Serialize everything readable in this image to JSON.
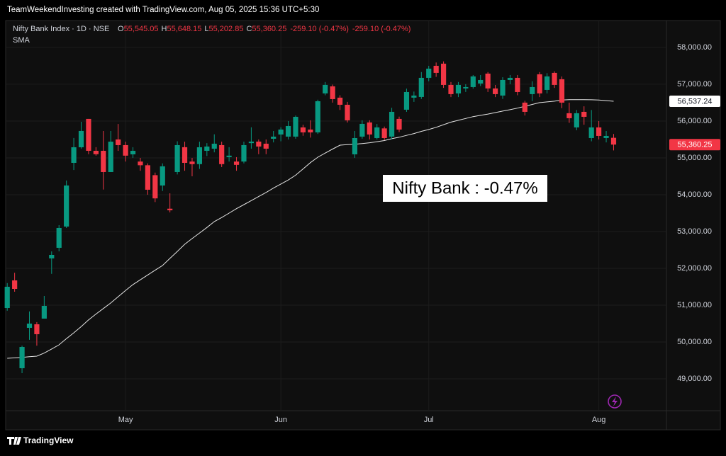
{
  "header": {
    "credit": "TeamWeekendInvesting created with TradingView.com, Aug 05, 2025 15:36 UTC+5:30"
  },
  "footer": {
    "brand": "TradingView"
  },
  "chart_data": {
    "type": "candlestick",
    "legend": {
      "symbol": "Nifty Bank Index · 1D · NSE",
      "ohlc": [
        {
          "key": "O",
          "value": "55,545.05"
        },
        {
          "key": "H",
          "value": "55,648.15"
        },
        {
          "key": "L",
          "value": "55,202.85"
        },
        {
          "key": "C",
          "value": "55,360.25"
        }
      ],
      "change": "-259.10 (-0.47%)",
      "change_pct": "-259.10 (-0.47%)"
    },
    "annotation": "Nifty Bank : -0.47%",
    "categories": [
      null,
      null,
      null,
      null,
      null,
      null,
      null,
      null,
      null,
      null,
      null,
      null,
      null,
      null,
      null,
      null,
      "May",
      null,
      null,
      null,
      null,
      null,
      null,
      null,
      null,
      null,
      null,
      null,
      null,
      null,
      null,
      null,
      null,
      null,
      null,
      null,
      null,
      "Jun",
      null,
      null,
      null,
      null,
      null,
      null,
      null,
      null,
      null,
      null,
      null,
      null,
      null,
      null,
      null,
      null,
      null,
      null,
      null,
      "Jul",
      null,
      null,
      null,
      null,
      null,
      null,
      null,
      null,
      null,
      null,
      null,
      null,
      null,
      null,
      null,
      null,
      null,
      null,
      null,
      null,
      null,
      null,
      "Aug",
      null,
      null
    ],
    "open": [
      50923,
      51673,
      49288,
      50385,
      50481,
      50635,
      52270,
      52558,
      53135,
      54865,
      55288,
      56058,
      55192,
      55192,
      54615,
      55500,
      55346,
      55096,
      54900,
      54800,
      54530,
      54250,
      53620,
      54615,
      55290,
      54900,
      54830,
      55192,
      55250,
      55346,
      55020,
      54900,
      54900,
      55400,
      55442,
      55385,
      55519,
      55635,
      55577,
      55577,
      55827,
      55769,
      55692,
      56750,
      56942,
      56635,
      56442,
      55096,
      55577,
      55962,
      55538,
      55800,
      55577,
      56058,
      56308,
      56635,
      56654,
      57173,
      57500,
      57558,
      56981,
      56750,
      56885,
      56923,
      57019,
      57288,
      56885,
      56692,
      57115,
      57173,
      56500,
      56731,
      57269,
      56846,
      57308,
      57135,
      56212,
      55827,
      56250,
      55538,
      55827,
      55538,
      55545.05
    ],
    "high": [
      51600,
      51880,
      49900,
      50830,
      50540,
      51250,
      52460,
      53173,
      54385,
      55540,
      55980,
      56058,
      55290,
      55730,
      55730,
      55920,
      55440,
      55290,
      55000,
      54850,
      54600,
      54850,
      54038,
      55450,
      55440,
      55000,
      55440,
      55400,
      55640,
      55440,
      55290,
      55020,
      55440,
      55830,
      55500,
      55500,
      55730,
      55830,
      56000,
      56150,
      55900,
      56020,
      56580,
      57060,
      56990,
      56700,
      56520,
      55730,
      56020,
      56020,
      55920,
      55850,
      56360,
      56120,
      56880,
      56800,
      57330,
      57500,
      57590,
      57620,
      57060,
      57060,
      57000,
      57250,
      57250,
      57330,
      56980,
      57190,
      57250,
      57250,
      56550,
      57080,
      57330,
      57300,
      57350,
      57210,
      56500,
      56300,
      56400,
      56300,
      56000,
      55730,
      55648.15
    ],
    "low": [
      50850,
      51365,
      49154,
      50060,
      49900,
      50635,
      51850,
      52462,
      53096,
      54670,
      55250,
      55100,
      55060,
      54140,
      54615,
      55190,
      54900,
      55000,
      54650,
      54000,
      53800,
      54100,
      53519,
      54550,
      54650,
      54500,
      54700,
      55050,
      55150,
      54750,
      54900,
      54650,
      54850,
      55250,
      55100,
      55100,
      55420,
      55450,
      55500,
      55520,
      55600,
      55550,
      55650,
      56700,
      56500,
      56300,
      55960,
      55000,
      55520,
      55500,
      55500,
      55480,
      55500,
      55700,
      56250,
      56520,
      56600,
      57080,
      57200,
      56900,
      56650,
      56650,
      56790,
      56880,
      56950,
      56790,
      56650,
      56600,
      57000,
      56700,
      56150,
      56540,
      56650,
      56750,
      56900,
      56350,
      55950,
      55750,
      55900,
      55450,
      55500,
      55420,
      55202.85
    ],
    "close": [
      51500,
      51442,
      49865,
      50500,
      50212,
      50981,
      52365,
      53096,
      54250,
      55288,
      55731,
      55192,
      55100,
      54615,
      55440,
      55346,
      55060,
      55192,
      54800,
      54135,
      53900,
      54770,
      53577,
      55346,
      54865,
      54830,
      55288,
      55308,
      55385,
      54830,
      55060,
      54810,
      55346,
      55442,
      55308,
      55250,
      55577,
      55769,
      55865,
      56115,
      55692,
      55692,
      56538,
      56981,
      56596,
      56442,
      56019,
      55538,
      55923,
      55635,
      55827,
      55538,
      56250,
      55769,
      56788,
      56692,
      57173,
      57423,
      57308,
      56981,
      56731,
      56981,
      56923,
      57212,
      57115,
      56885,
      56731,
      57115,
      57173,
      56788,
      56250,
      56923,
      56750,
      57212,
      56981,
      56500,
      56077,
      56212,
      56115,
      55827,
      55596,
      55596,
      55360.25
    ],
    "up_color": "#089981",
    "down_color": "#f23645",
    "sma": {
      "name": "SMA",
      "color": "#e6e6e6",
      "values": [
        49558,
        49570,
        49580,
        49600,
        49615,
        49700,
        49810,
        49923,
        50090,
        50250,
        50420,
        50600,
        50760,
        50910,
        51060,
        51230,
        51400,
        51560,
        51690,
        51820,
        51950,
        52077,
        52270,
        52460,
        52654,
        52810,
        52960,
        53110,
        53270,
        53380,
        53500,
        53620,
        53730,
        53840,
        53950,
        54060,
        54180,
        54290,
        54400,
        54530,
        54700,
        54870,
        55019,
        55130,
        55240,
        55346,
        55360,
        55370,
        55390,
        55410,
        55440,
        55470,
        55520,
        55560,
        55610,
        55660,
        55720,
        55770,
        55830,
        55900,
        55970,
        56020,
        56070,
        56120,
        56154,
        56190,
        56230,
        56270,
        56308,
        56350,
        56400,
        56450,
        56500,
        56520,
        56540,
        56570,
        56580,
        56580,
        56580,
        56577,
        56570,
        56555,
        56537.24
      ]
    },
    "price_tags": [
      {
        "value": 56537.24,
        "label": "56,537.24",
        "color": "#ffffff",
        "text_color": "#131722"
      },
      {
        "value": 55360.25,
        "label": "55,360.25",
        "color": "#f23645",
        "text_color": "#ffffff"
      }
    ],
    "ylim": [
      48135,
      58710
    ],
    "yticks": [
      {
        "value": 49000,
        "label": "49,000.00"
      },
      {
        "value": 50000,
        "label": "50,000.00"
      },
      {
        "value": 51000,
        "label": "51,000.00"
      },
      {
        "value": 52000,
        "label": "52,000.00"
      },
      {
        "value": 53000,
        "label": "53,000.00"
      },
      {
        "value": 54000,
        "label": "54,000.00"
      },
      {
        "value": 55000,
        "label": "55,000.00"
      },
      {
        "value": 56000,
        "label": "56,000.00"
      },
      {
        "value": 57000,
        "label": "57,000.00"
      },
      {
        "value": 58000,
        "label": "58,000.00"
      }
    ],
    "grid": true
  }
}
